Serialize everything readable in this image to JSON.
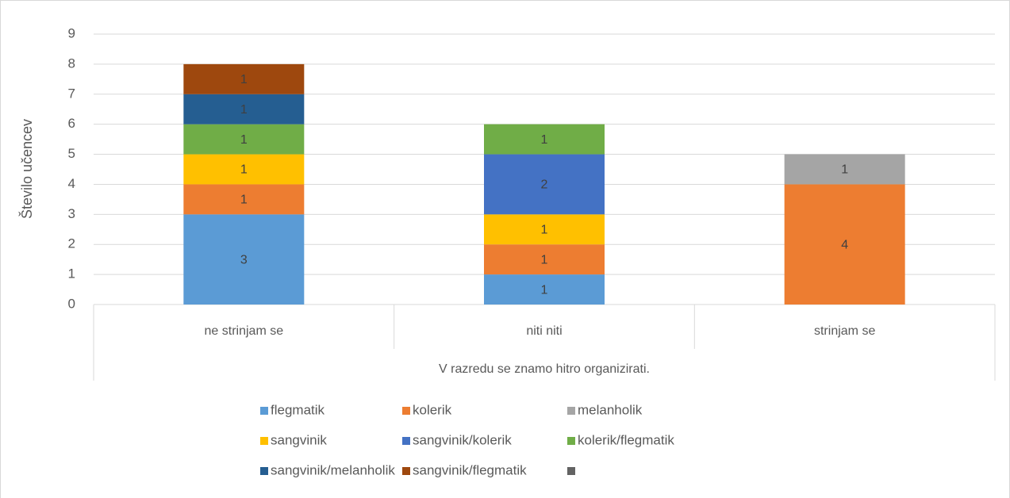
{
  "chart_data": {
    "type": "stacked_bar",
    "xlabel": "V razredu se znamo hitro organizirati.",
    "ylabel": "Število učencev",
    "categories": [
      "ne strinjam se",
      "niti niti",
      "strinjam se"
    ],
    "ylim": [
      0,
      9
    ],
    "yticks": [
      0,
      1,
      2,
      3,
      4,
      5,
      6,
      7,
      8,
      9
    ],
    "grid": true,
    "legend": "bottom",
    "series": [
      {
        "name": "flegmatik",
        "color": "#5b9bd5",
        "values": [
          3,
          1,
          null
        ]
      },
      {
        "name": "kolerik",
        "color": "#ed7d31",
        "values": [
          1,
          1,
          4
        ]
      },
      {
        "name": "melanholik",
        "color": "#a5a5a5",
        "values": [
          null,
          null,
          1
        ]
      },
      {
        "name": "sangvinik",
        "color": "#ffc000",
        "values": [
          1,
          1,
          null
        ]
      },
      {
        "name": "sangvinik/kolerik",
        "color": "#4472c4",
        "values": [
          null,
          2,
          null
        ]
      },
      {
        "name": "kolerik/flegmatik",
        "color": "#70ad47",
        "values": [
          1,
          1,
          null
        ]
      },
      {
        "name": "sangvinik/melanholik",
        "color": "#255e91",
        "values": [
          1,
          null,
          null
        ]
      },
      {
        "name": "sangvinik/flegmatik",
        "color": "#9e480e",
        "values": [
          1,
          null,
          null
        ]
      },
      {
        "color": "#636363",
        "values": [
          null,
          null,
          null
        ]
      }
    ]
  }
}
